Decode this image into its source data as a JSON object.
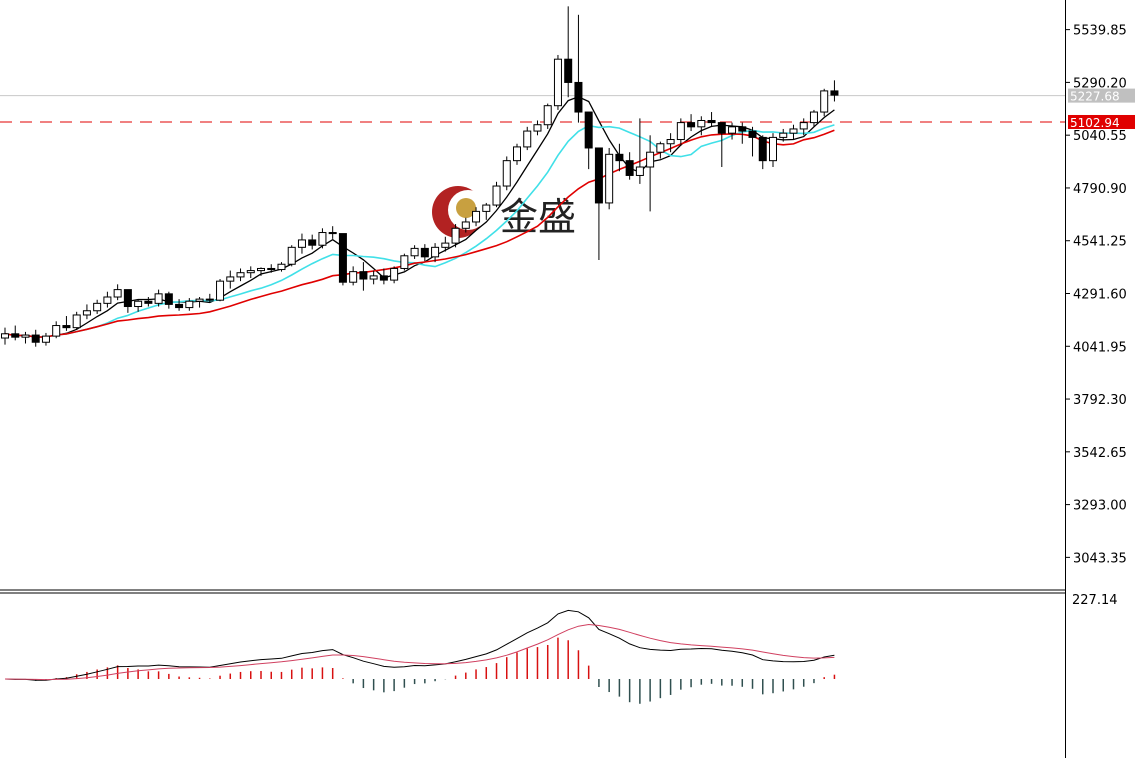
{
  "chart_data": {
    "type": "candlestick",
    "price_axis": {
      "range": [
        2889,
        5680
      ],
      "ticks": [
        "5539.85",
        "5290.20",
        "5040.55",
        "4790.90",
        "4541.25",
        "4291.60",
        "4041.95",
        "3792.30",
        "3542.65",
        "3293.00",
        "3043.35"
      ]
    },
    "current_price": {
      "value": 5227.68,
      "label": "5227.68",
      "color": "#c0c0c0"
    },
    "reference_line": {
      "value": 5102.94,
      "label": "5102.94",
      "color": "#e00000",
      "style": "dashed"
    },
    "candles": [
      [
        4081,
        4130,
        4050,
        4101
      ],
      [
        4101,
        4140,
        4070,
        4085
      ],
      [
        4085,
        4110,
        4055,
        4095
      ],
      [
        4095,
        4120,
        4040,
        4061
      ],
      [
        4061,
        4105,
        4045,
        4090
      ],
      [
        4090,
        4160,
        4080,
        4140
      ],
      [
        4140,
        4185,
        4115,
        4130
      ],
      [
        4130,
        4205,
        4120,
        4190
      ],
      [
        4190,
        4240,
        4170,
        4210
      ],
      [
        4210,
        4262,
        4195,
        4245
      ],
      [
        4245,
        4300,
        4225,
        4275
      ],
      [
        4275,
        4335,
        4260,
        4310
      ],
      [
        4310,
        4310,
        4200,
        4230
      ],
      [
        4230,
        4265,
        4205,
        4255
      ],
      [
        4255,
        4275,
        4230,
        4245
      ],
      [
        4245,
        4310,
        4230,
        4290
      ],
      [
        4290,
        4300,
        4220,
        4240
      ],
      [
        4240,
        4265,
        4210,
        4225
      ],
      [
        4225,
        4270,
        4210,
        4255
      ],
      [
        4255,
        4275,
        4225,
        4265
      ],
      [
        4265,
        4290,
        4250,
        4260
      ],
      [
        4260,
        4360,
        4255,
        4350
      ],
      [
        4350,
        4400,
        4315,
        4370
      ],
      [
        4370,
        4410,
        4350,
        4390
      ],
      [
        4390,
        4420,
        4365,
        4400
      ],
      [
        4400,
        4415,
        4375,
        4410
      ],
      [
        4410,
        4430,
        4390,
        4405
      ],
      [
        4405,
        4440,
        4395,
        4430
      ],
      [
        4430,
        4520,
        4420,
        4510
      ],
      [
        4510,
        4575,
        4480,
        4545
      ],
      [
        4545,
        4570,
        4500,
        4520
      ],
      [
        4520,
        4600,
        4505,
        4580
      ],
      [
        4580,
        4610,
        4550,
        4575
      ],
      [
        4575,
        4575,
        4330,
        4345
      ],
      [
        4345,
        4420,
        4330,
        4395
      ],
      [
        4395,
        4440,
        4305,
        4360
      ],
      [
        4360,
        4400,
        4335,
        4375
      ],
      [
        4375,
        4410,
        4335,
        4355
      ],
      [
        4355,
        4420,
        4340,
        4410
      ],
      [
        4410,
        4480,
        4400,
        4470
      ],
      [
        4470,
        4520,
        4455,
        4505
      ],
      [
        4505,
        4525,
        4445,
        4465
      ],
      [
        4465,
        4530,
        4440,
        4510
      ],
      [
        4510,
        4560,
        4490,
        4530
      ],
      [
        4530,
        4620,
        4510,
        4600
      ],
      [
        4600,
        4650,
        4580,
        4630
      ],
      [
        4630,
        4700,
        4610,
        4680
      ],
      [
        4680,
        4720,
        4640,
        4710
      ],
      [
        4710,
        4820,
        4700,
        4800
      ],
      [
        4800,
        4940,
        4780,
        4920
      ],
      [
        4920,
        5000,
        4900,
        4985
      ],
      [
        4985,
        5080,
        4970,
        5060
      ],
      [
        5060,
        5110,
        5040,
        5090
      ],
      [
        5090,
        5190,
        5070,
        5180
      ],
      [
        5180,
        5420,
        5160,
        5400
      ],
      [
        5400,
        5650,
        5220,
        5290
      ],
      [
        5290,
        5610,
        5100,
        5150
      ],
      [
        5150,
        5150,
        4880,
        4980
      ],
      [
        4980,
        4980,
        4450,
        4720
      ],
      [
        4720,
        4980,
        4690,
        4950
      ],
      [
        4950,
        5000,
        4870,
        4920
      ],
      [
        4920,
        4960,
        4830,
        4850
      ],
      [
        4850,
        5120,
        4810,
        4890
      ],
      [
        4890,
        5040,
        4680,
        4960
      ],
      [
        4960,
        5010,
        4930,
        5000
      ],
      [
        5000,
        5050,
        4960,
        5020
      ],
      [
        5020,
        5120,
        4990,
        5100
      ],
      [
        5100,
        5140,
        5060,
        5080
      ],
      [
        5080,
        5130,
        5040,
        5110
      ],
      [
        5110,
        5150,
        5080,
        5100
      ],
      [
        5100,
        5100,
        4890,
        5050
      ],
      [
        5050,
        5100,
        5020,
        5080
      ],
      [
        5080,
        5100,
        5000,
        5060
      ],
      [
        5060,
        5080,
        4940,
        5030
      ],
      [
        5030,
        5040,
        4880,
        4920
      ],
      [
        4920,
        5050,
        4890,
        5030
      ],
      [
        5030,
        5070,
        5010,
        5050
      ],
      [
        5050,
        5090,
        5020,
        5070
      ],
      [
        5070,
        5120,
        5040,
        5100
      ],
      [
        5100,
        5160,
        5080,
        5150
      ],
      [
        5150,
        5260,
        5130,
        5250
      ],
      [
        5250,
        5300,
        5200,
        5230
      ]
    ],
    "ma_series": [
      {
        "period": 5,
        "color": "#000000"
      },
      {
        "period": 10,
        "color": "#40e0e8"
      },
      {
        "period": 20,
        "color": "#e00000"
      }
    ],
    "macd_panel": {
      "axis_label": "227.14",
      "range": [
        -260,
        260
      ],
      "dif_color": "#000000",
      "dea_color": "#d04060",
      "bar_up_color": "#d81010",
      "bar_down_color": "#2f4f4f"
    }
  },
  "watermark": {
    "brand": "金盛"
  }
}
